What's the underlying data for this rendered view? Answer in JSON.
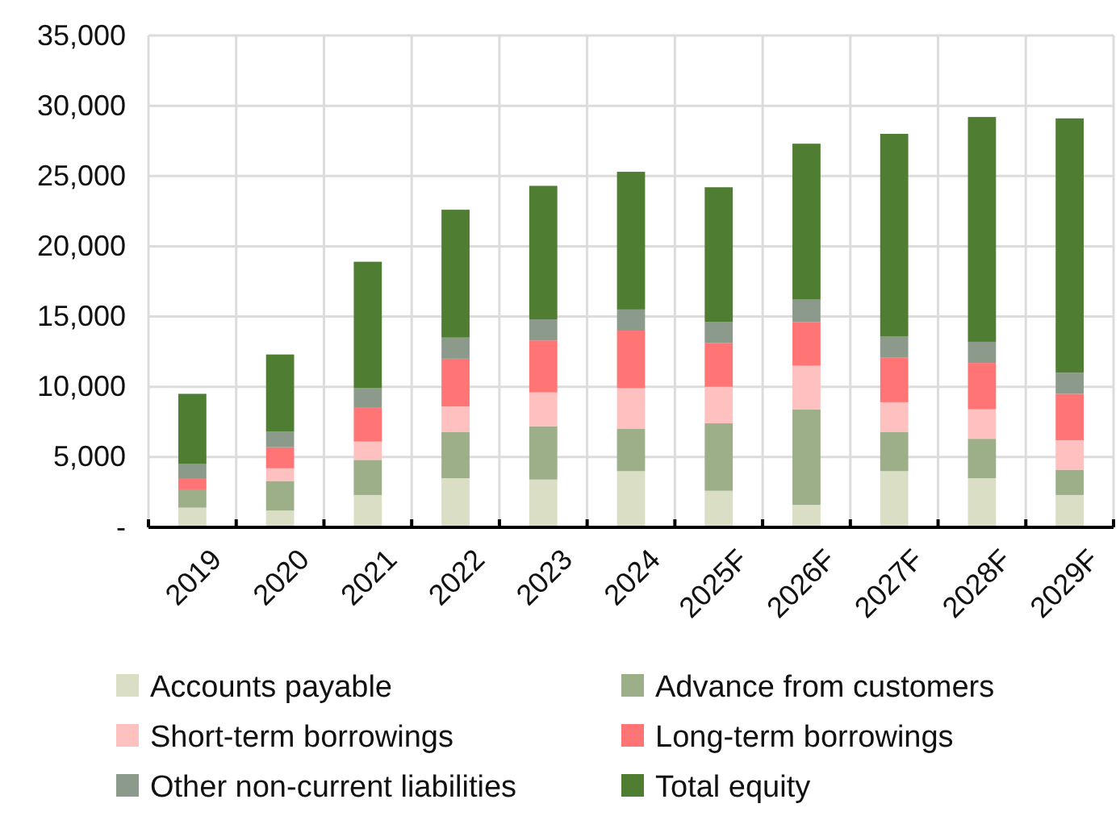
{
  "chart_data": {
    "type": "bar",
    "stacked": true,
    "categories": [
      "2019",
      "2020",
      "2021",
      "2022",
      "2023",
      "2024",
      "2025F",
      "2026F",
      "2027F",
      "2028F",
      "2029F"
    ],
    "series": [
      {
        "name": "Accounts payable",
        "color": "#d9dec5",
        "values": [
          1400,
          1200,
          2300,
          3500,
          3400,
          4000,
          2600,
          1600,
          4000,
          3500,
          2300
        ]
      },
      {
        "name": "Advance from customers",
        "color": "#9caf88",
        "values": [
          1300,
          2100,
          2500,
          3300,
          3800,
          3000,
          4800,
          6800,
          2800,
          2800,
          1800
        ]
      },
      {
        "name": "Short-term borrowings",
        "color": "#ffc0c0",
        "values": [
          null,
          900,
          1300,
          1800,
          2400,
          2900,
          2600,
          3100,
          2100,
          2100,
          2100
        ]
      },
      {
        "name": "Long-term borrowings",
        "color": "#ff7575",
        "values": [
          800,
          1500,
          2400,
          3400,
          3700,
          4100,
          3100,
          3100,
          3200,
          3300,
          3300
        ]
      },
      {
        "name": "Other non-current liabilities",
        "color": "#8c9a8c",
        "values": [
          1000,
          1100,
          1400,
          1500,
          1500,
          1500,
          1500,
          1600,
          1500,
          1500,
          1500
        ]
      },
      {
        "name": "Total equity",
        "color": "#4f7d32",
        "values": [
          5000,
          5500,
          9000,
          9100,
          9500,
          9800,
          9600,
          11100,
          14400,
          16000,
          18100
        ]
      }
    ],
    "ylim": [
      0,
      35000
    ],
    "yticks": [
      {
        "value": 0,
        "label": "-"
      },
      {
        "value": 5000,
        "label": "5,000"
      },
      {
        "value": 10000,
        "label": "10,000"
      },
      {
        "value": 15000,
        "label": "15,000"
      },
      {
        "value": 20000,
        "label": "20,000"
      },
      {
        "value": 25000,
        "label": "25,000"
      },
      {
        "value": 30000,
        "label": "30,000"
      },
      {
        "value": 35000,
        "label": "35,000"
      }
    ],
    "grid": true,
    "legend": "bottom"
  }
}
